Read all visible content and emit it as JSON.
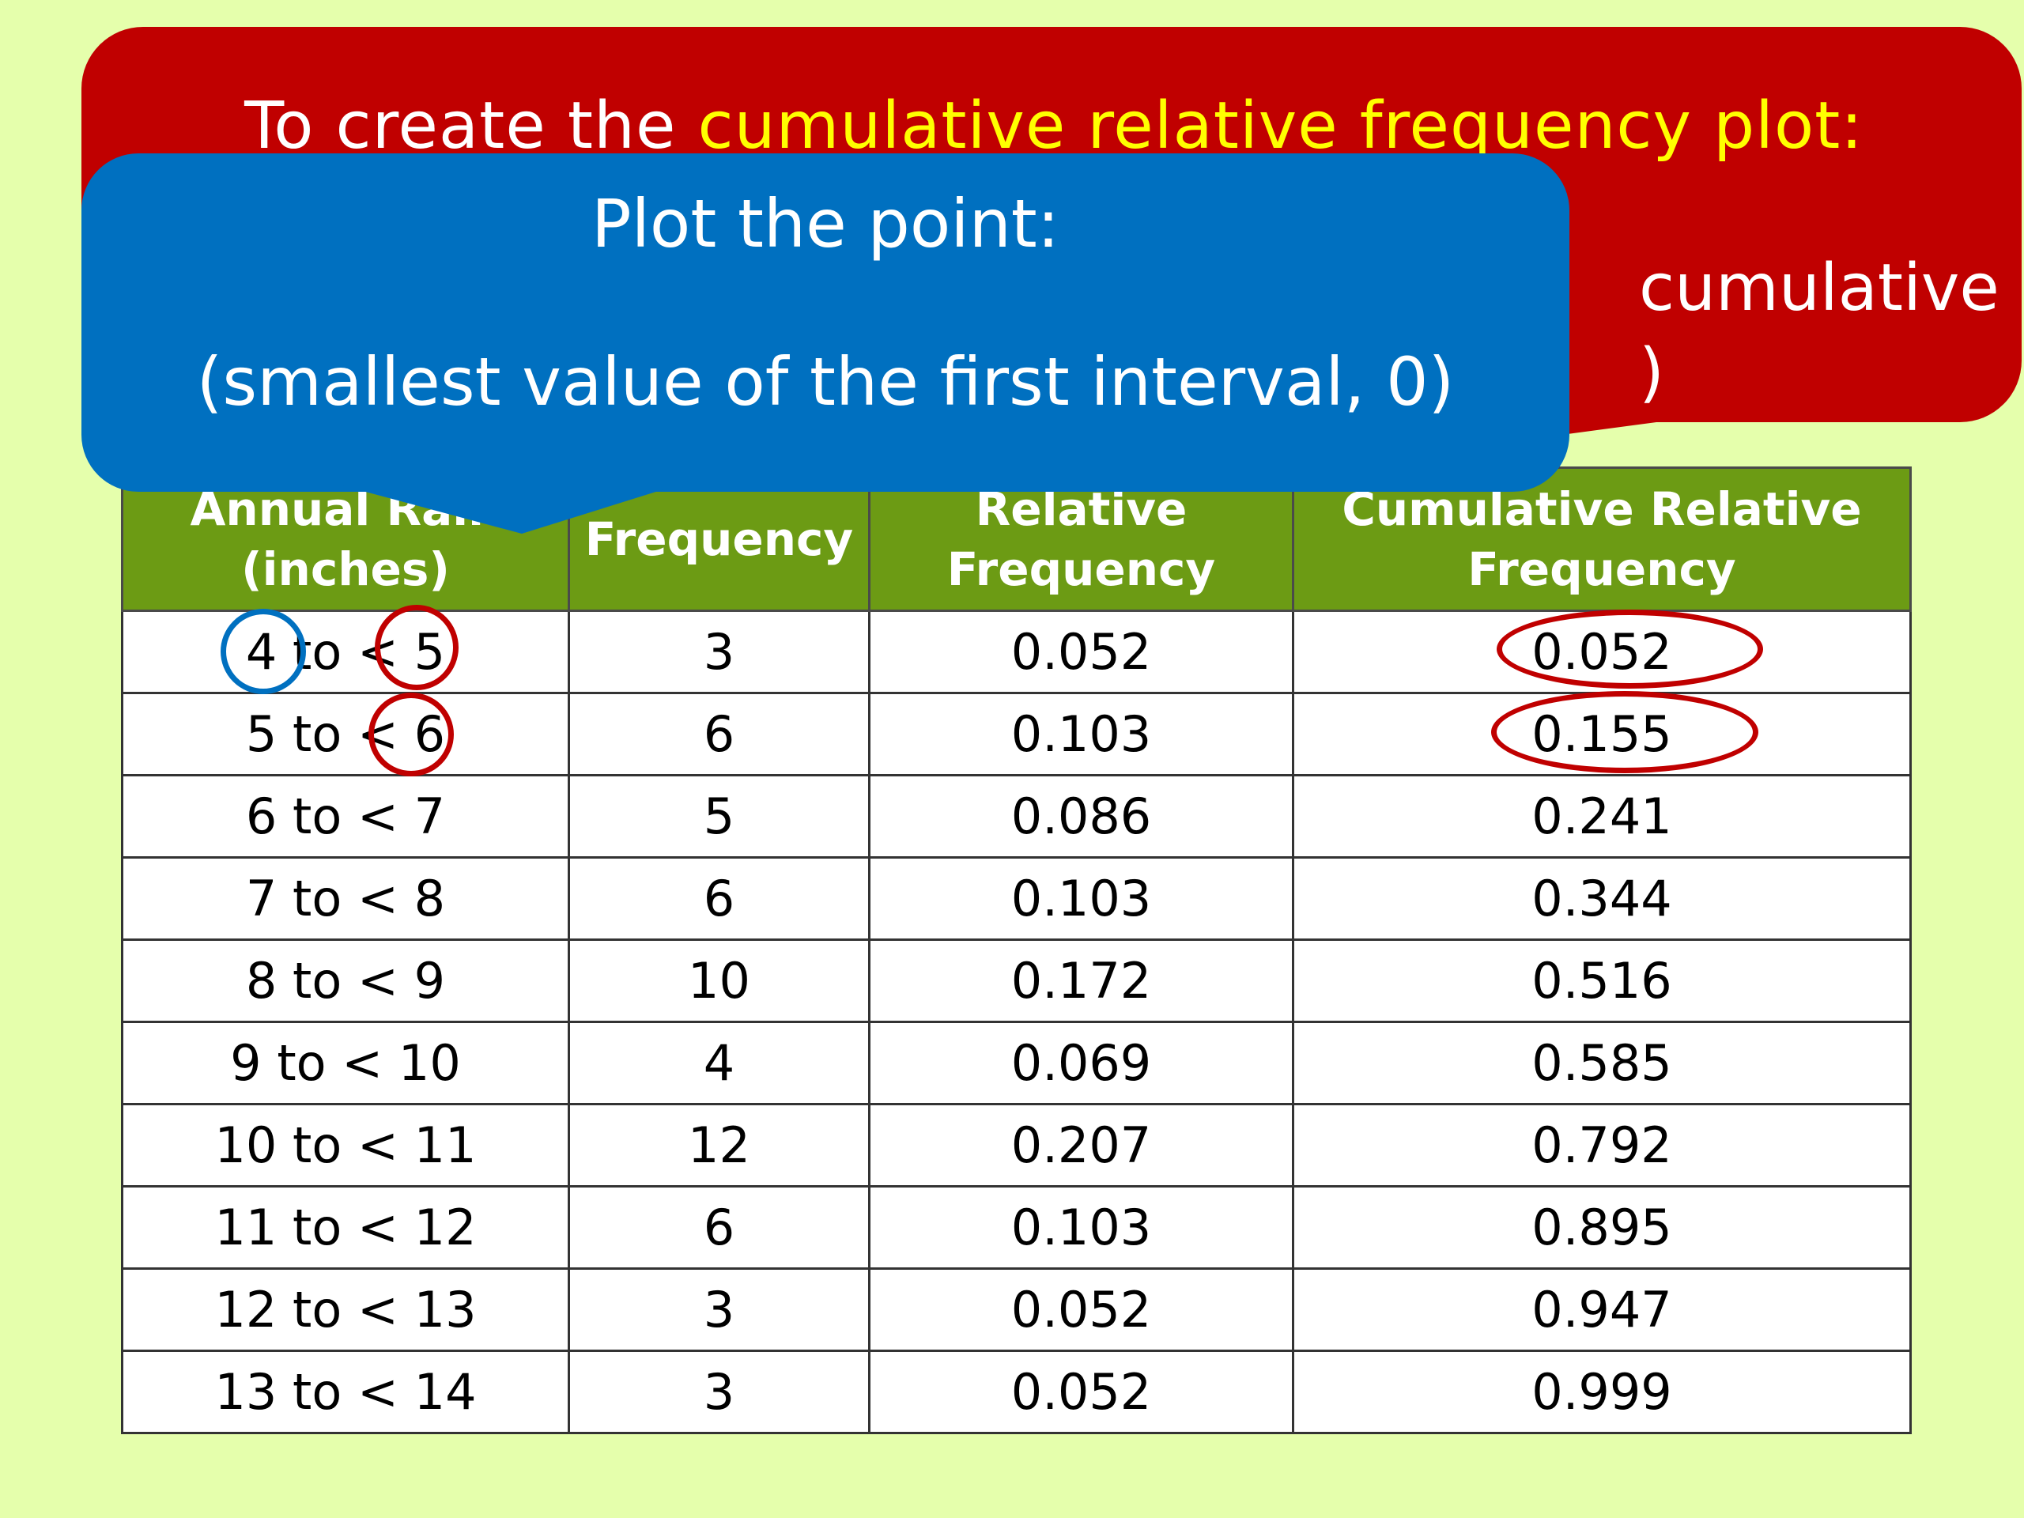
{
  "red_callout": {
    "title_prefix": "To create the ",
    "title_highlight": "cumulative relative frequency  plot:",
    "partial_line2": "cumulative",
    "partial_line3": ")"
  },
  "blue_callout": {
    "title": "Plot the point:",
    "subtitle": "(smallest value of the first interval, 0)"
  },
  "table": {
    "headers": {
      "rain_line1": "Annual Rain",
      "rain_line2": "(inches)",
      "frequency": "Frequency",
      "relative_line1": "Relative",
      "relative_line2": "Frequency",
      "cumulative_line1": "Cumulative Relative",
      "cumulative_line2": "Frequency"
    },
    "rows": [
      {
        "interval": "4 to < 5",
        "frequency": "3",
        "relative": "0.052",
        "cumulative": "0.052"
      },
      {
        "interval": "5 to < 6",
        "frequency": "6",
        "relative": "0.103",
        "cumulative": "0.155"
      },
      {
        "interval": "6 to < 7",
        "frequency": "5",
        "relative": "0.086",
        "cumulative": "0.241"
      },
      {
        "interval": "7 to < 8",
        "frequency": "6",
        "relative": "0.103",
        "cumulative": "0.344"
      },
      {
        "interval": "8 to < 9",
        "frequency": "10",
        "relative": "0.172",
        "cumulative": "0.516"
      },
      {
        "interval": "9 to < 10",
        "frequency": "4",
        "relative": "0.069",
        "cumulative": "0.585"
      },
      {
        "interval": "10 to < 11",
        "frequency": "12",
        "relative": "0.207",
        "cumulative": "0.792"
      },
      {
        "interval": "11 to < 12",
        "frequency": "6",
        "relative": "0.103",
        "cumulative": "0.895"
      },
      {
        "interval": "12 to < 13",
        "frequency": "3",
        "relative": "0.052",
        "cumulative": "0.947"
      },
      {
        "interval": "13 to < 14",
        "frequency": "3",
        "relative": "0.052",
        "cumulative": "0.999"
      }
    ]
  },
  "colors": {
    "background": "#e5ffac",
    "red_callout": "#c00000",
    "blue_callout": "#0070c0",
    "header_green": "#6c9b14",
    "highlight_yellow": "#ffff00"
  }
}
